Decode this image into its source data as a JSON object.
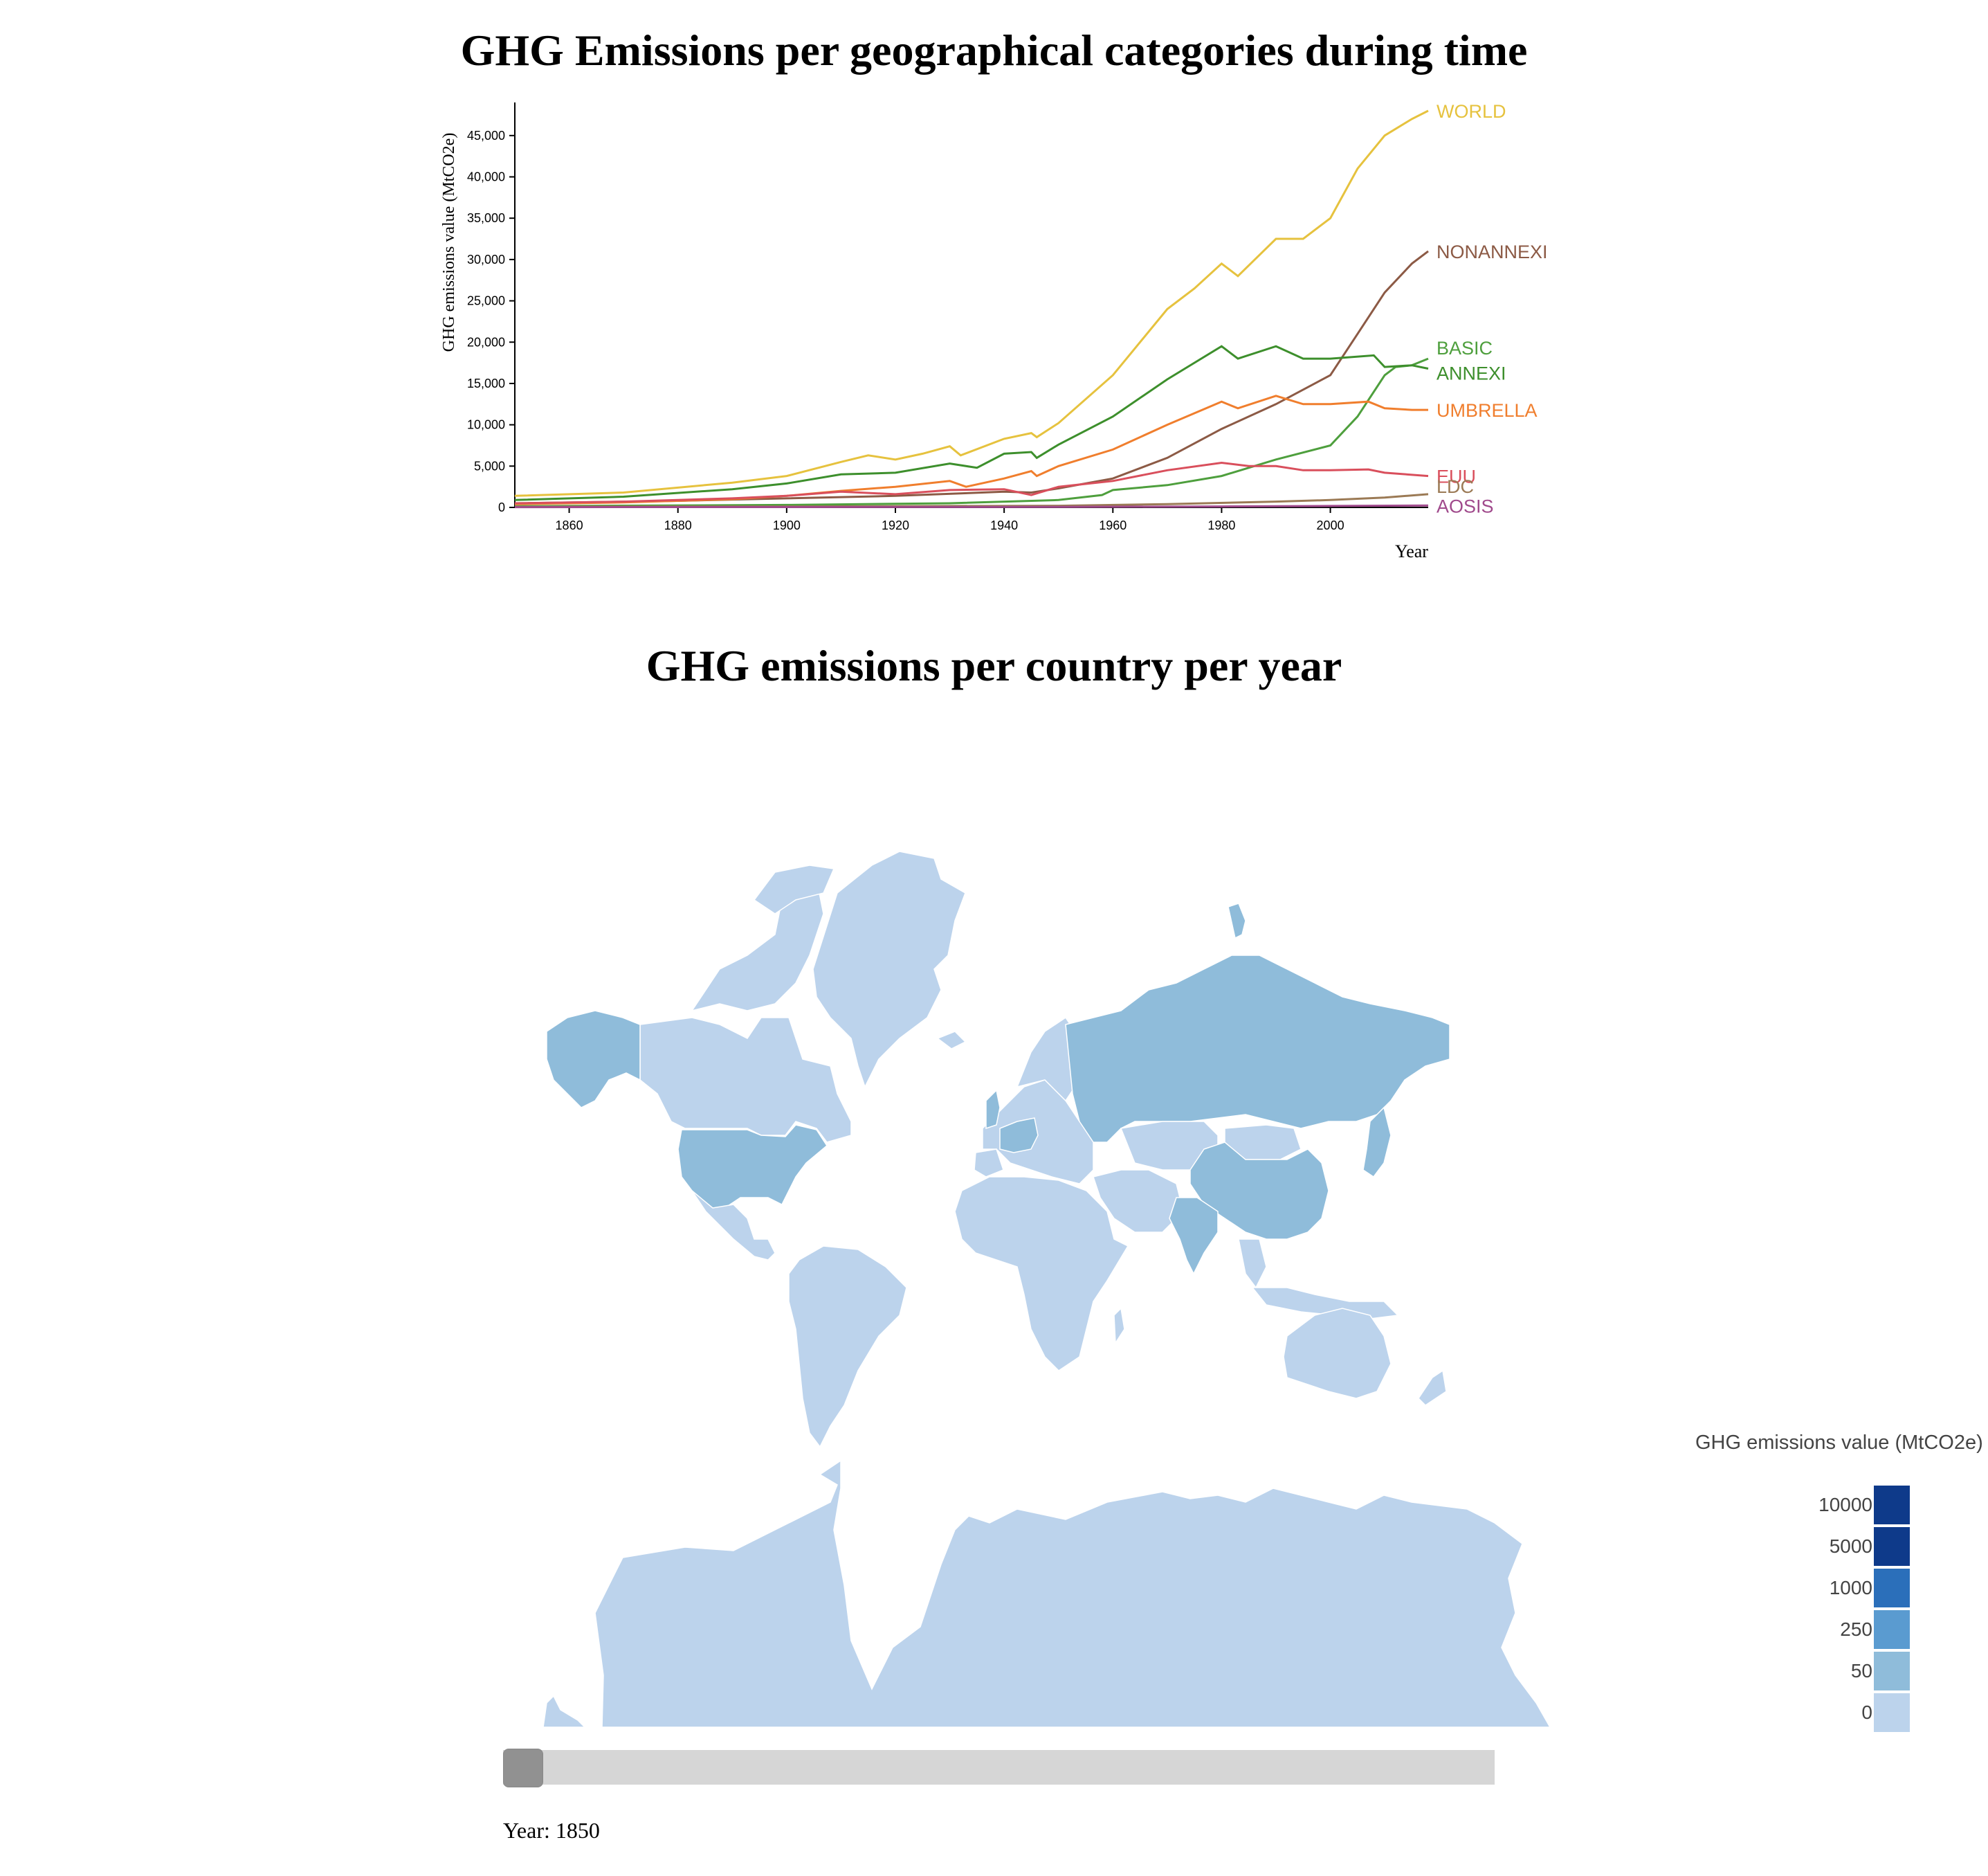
{
  "line_chart": {
    "title": "GHG Emissions per geographical categories during time",
    "chart_data": {
      "type": "line",
      "xlabel": "Year",
      "ylabel": "GHG emissions value (MtCO2e)",
      "xlim": [
        1850,
        2018
      ],
      "ylim": [
        0,
        48000
      ],
      "x_ticks": [
        1860,
        1880,
        1900,
        1920,
        1940,
        1960,
        1980,
        2000
      ],
      "y_ticks": [
        0,
        5000,
        10000,
        15000,
        20000,
        25000,
        30000,
        35000,
        40000,
        45000
      ],
      "y_tick_labels": [
        "0",
        "5,000",
        "10,000",
        "15,000",
        "20,000",
        "25,000",
        "30,000",
        "35,000",
        "40,000",
        "45,000"
      ],
      "series": [
        {
          "name": "WORLD",
          "color": "#e6c23e",
          "points": [
            [
              1850,
              1400
            ],
            [
              1870,
              1800
            ],
            [
              1890,
              3000
            ],
            [
              1900,
              3800
            ],
            [
              1910,
              5500
            ],
            [
              1915,
              6300
            ],
            [
              1920,
              5800
            ],
            [
              1925,
              6500
            ],
            [
              1930,
              7400
            ],
            [
              1932,
              6300
            ],
            [
              1940,
              8300
            ],
            [
              1945,
              9000
            ],
            [
              1946,
              8500
            ],
            [
              1950,
              10200
            ],
            [
              1960,
              16000
            ],
            [
              1970,
              24000
            ],
            [
              1975,
              26500
            ],
            [
              1980,
              29500
            ],
            [
              1983,
              28000
            ],
            [
              1990,
              32500
            ],
            [
              1995,
              32500
            ],
            [
              2000,
              35000
            ],
            [
              2005,
              41000
            ],
            [
              2010,
              45000
            ],
            [
              2015,
              47000
            ],
            [
              2018,
              48000
            ]
          ]
        },
        {
          "name": "NONANNEXI",
          "color": "#8c5a45",
          "points": [
            [
              1850,
              500
            ],
            [
              1880,
              800
            ],
            [
              1900,
              1100
            ],
            [
              1920,
              1400
            ],
            [
              1940,
              1900
            ],
            [
              1945,
              1800
            ],
            [
              1950,
              2300
            ],
            [
              1960,
              3500
            ],
            [
              1970,
              6000
            ],
            [
              1980,
              9500
            ],
            [
              1990,
              12500
            ],
            [
              2000,
              16000
            ],
            [
              2005,
              21000
            ],
            [
              2010,
              26000
            ],
            [
              2015,
              29500
            ],
            [
              2018,
              31000
            ]
          ]
        },
        {
          "name": "BASIC",
          "color": "#4e9f3d",
          "points": [
            [
              1850,
              150
            ],
            [
              1900,
              300
            ],
            [
              1930,
              500
            ],
            [
              1950,
              900
            ],
            [
              1958,
              1500
            ],
            [
              1960,
              2100
            ],
            [
              1970,
              2700
            ],
            [
              1980,
              3800
            ],
            [
              1990,
              5800
            ],
            [
              2000,
              7500
            ],
            [
              2005,
              11000
            ],
            [
              2010,
              16000
            ],
            [
              2012,
              17000
            ],
            [
              2015,
              17200
            ],
            [
              2018,
              18000
            ]
          ]
        },
        {
          "name": "ANNEXI",
          "color": "#3d8f2c",
          "points": [
            [
              1850,
              900
            ],
            [
              1870,
              1300
            ],
            [
              1890,
              2200
            ],
            [
              1900,
              2900
            ],
            [
              1910,
              4000
            ],
            [
              1920,
              4200
            ],
            [
              1930,
              5300
            ],
            [
              1935,
              4800
            ],
            [
              1940,
              6500
            ],
            [
              1945,
              6700
            ],
            [
              1946,
              6000
            ],
            [
              1950,
              7600
            ],
            [
              1960,
              11000
            ],
            [
              1970,
              15500
            ],
            [
              1975,
              17500
            ],
            [
              1980,
              19500
            ],
            [
              1983,
              18000
            ],
            [
              1990,
              19500
            ],
            [
              1995,
              18000
            ],
            [
              2000,
              18000
            ],
            [
              2008,
              18400
            ],
            [
              2010,
              17000
            ],
            [
              2015,
              17200
            ],
            [
              2018,
              16800
            ]
          ]
        },
        {
          "name": "UMBRELLA",
          "color": "#f07e2d",
          "points": [
            [
              1850,
              400
            ],
            [
              1870,
              600
            ],
            [
              1890,
              1000
            ],
            [
              1900,
              1400
            ],
            [
              1910,
              2000
            ],
            [
              1920,
              2500
            ],
            [
              1930,
              3200
            ],
            [
              1933,
              2500
            ],
            [
              1940,
              3500
            ],
            [
              1945,
              4400
            ],
            [
              1946,
              3800
            ],
            [
              1950,
              5000
            ],
            [
              1960,
              7000
            ],
            [
              1970,
              10000
            ],
            [
              1980,
              12800
            ],
            [
              1983,
              12000
            ],
            [
              1990,
              13500
            ],
            [
              1995,
              12500
            ],
            [
              2000,
              12500
            ],
            [
              2007,
              12800
            ],
            [
              2010,
              12000
            ],
            [
              2015,
              11800
            ],
            [
              2018,
              11800
            ]
          ]
        },
        {
          "name": "EUU",
          "color": "#d94f5c",
          "points": [
            [
              1850,
              500
            ],
            [
              1870,
              700
            ],
            [
              1890,
              1100
            ],
            [
              1900,
              1400
            ],
            [
              1910,
              1900
            ],
            [
              1920,
              1600
            ],
            [
              1930,
              2100
            ],
            [
              1940,
              2200
            ],
            [
              1945,
              1500
            ],
            [
              1950,
              2500
            ],
            [
              1960,
              3200
            ],
            [
              1970,
              4500
            ],
            [
              1980,
              5400
            ],
            [
              1985,
              5000
            ],
            [
              1990,
              5000
            ],
            [
              1995,
              4500
            ],
            [
              2000,
              4500
            ],
            [
              2007,
              4600
            ],
            [
              2010,
              4200
            ],
            [
              2018,
              3800
            ]
          ]
        },
        {
          "name": "LDC",
          "color": "#9b7a55",
          "points": [
            [
              1850,
              80
            ],
            [
              1900,
              120
            ],
            [
              1950,
              200
            ],
            [
              1970,
              400
            ],
            [
              1990,
              700
            ],
            [
              2000,
              900
            ],
            [
              2010,
              1200
            ],
            [
              2018,
              1600
            ]
          ]
        },
        {
          "name": "AOSIS",
          "color": "#a04a8c",
          "points": [
            [
              1850,
              30
            ],
            [
              1950,
              60
            ],
            [
              1980,
              120
            ],
            [
              2000,
              180
            ],
            [
              2018,
              230
            ]
          ]
        }
      ]
    }
  },
  "map": {
    "title": "GHG emissions per country per year",
    "legend": {
      "title": "GHG emissions value (MtCO2e)",
      "items": [
        {
          "label": "10000",
          "color": "#0e3a8a"
        },
        {
          "label": "5000",
          "color": "#0e3a8a"
        },
        {
          "label": "1000",
          "color": "#2b6fba"
        },
        {
          "label": "250",
          "color": "#5a9bd0"
        },
        {
          "label": "50",
          "color": "#8fbcda"
        },
        {
          "label": "0",
          "color": "#bcd3ec"
        }
      ]
    },
    "slider": {
      "year_label": "Year: 1850",
      "value": 1850
    },
    "colors": {
      "low": "#bcd3ec",
      "mid": "#8fbcda"
    }
  }
}
